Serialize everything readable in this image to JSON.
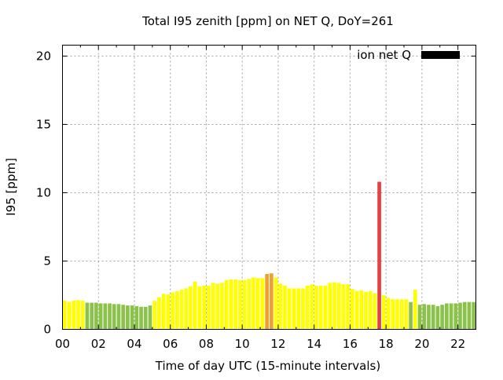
{
  "chart_data": {
    "type": "bar",
    "title": "Total I95 zenith [ppm] on NET Q, DoY=261",
    "xlabel": "Time of day UTC (15-minute intervals)",
    "ylabel": "I95 [ppm]",
    "xlim": [
      0,
      23
    ],
    "ylim": [
      0,
      20.8
    ],
    "x_ticks": [
      "00",
      "02",
      "04",
      "06",
      "08",
      "10",
      "12",
      "14",
      "16",
      "18",
      "20",
      "22"
    ],
    "y_ticks": [
      "0",
      "5",
      "10",
      "15",
      "20"
    ],
    "grid": true,
    "legend": {
      "label": "ion net Q",
      "color": "#000000",
      "position": "top-right"
    },
    "x": [
      0.125,
      0.375,
      0.625,
      0.875,
      1.125,
      1.375,
      1.625,
      1.875,
      2.125,
      2.375,
      2.625,
      2.875,
      3.125,
      3.375,
      3.625,
      3.875,
      4.125,
      4.375,
      4.625,
      4.875,
      5.125,
      5.375,
      5.625,
      5.875,
      6.125,
      6.375,
      6.625,
      6.875,
      7.125,
      7.375,
      7.625,
      7.875,
      8.125,
      8.375,
      8.625,
      8.875,
      9.125,
      9.375,
      9.625,
      9.875,
      10.125,
      10.375,
      10.625,
      10.875,
      11.125,
      11.375,
      11.625,
      11.875,
      12.125,
      12.375,
      12.625,
      12.875,
      13.125,
      13.375,
      13.625,
      13.875,
      14.125,
      14.375,
      14.625,
      14.875,
      15.125,
      15.375,
      15.625,
      15.875,
      16.125,
      16.375,
      16.625,
      16.875,
      17.125,
      17.375,
      17.625,
      17.875,
      18.125,
      18.375,
      18.625,
      18.875,
      19.125,
      19.375,
      19.625,
      19.875,
      20.125,
      20.375,
      20.625,
      20.875,
      21.125,
      21.375,
      21.625,
      21.875,
      22.125,
      22.375,
      22.625,
      22.875
    ],
    "values": [
      2.1,
      2.0,
      2.1,
      2.15,
      2.1,
      1.95,
      1.95,
      1.95,
      1.9,
      1.9,
      1.9,
      1.85,
      1.85,
      1.8,
      1.75,
      1.75,
      1.7,
      1.65,
      1.65,
      1.75,
      2.1,
      2.35,
      2.6,
      2.55,
      2.7,
      2.8,
      2.9,
      3.0,
      3.15,
      3.5,
      3.15,
      3.2,
      3.2,
      3.4,
      3.35,
      3.4,
      3.6,
      3.65,
      3.65,
      3.6,
      3.6,
      3.7,
      3.8,
      3.75,
      3.75,
      4.05,
      4.1,
      3.8,
      3.35,
      3.2,
      3.0,
      3.0,
      3.0,
      3.0,
      3.2,
      3.3,
      3.2,
      3.2,
      3.2,
      3.4,
      3.45,
      3.4,
      3.3,
      3.3,
      2.95,
      2.8,
      2.85,
      2.75,
      2.8,
      2.65,
      10.8,
      2.5,
      2.3,
      2.2,
      2.2,
      2.2,
      2.2,
      2.0,
      2.9,
      1.8,
      1.85,
      1.8,
      1.8,
      1.7,
      1.8,
      1.9,
      1.9,
      1.9,
      1.95,
      2.0,
      2.0,
      2.0
    ],
    "bar_colors": [
      "#ffff00",
      "#ffff00",
      "#ffff00",
      "#ffff00",
      "#ffff00",
      "#8bc34a",
      "#8bc34a",
      "#8bc34a",
      "#8bc34a",
      "#8bc34a",
      "#8bc34a",
      "#8bc34a",
      "#8bc34a",
      "#8bc34a",
      "#8bc34a",
      "#8bc34a",
      "#8bc34a",
      "#8bc34a",
      "#8bc34a",
      "#8bc34a",
      "#ffff00",
      "#ffff00",
      "#ffff00",
      "#ffff00",
      "#ffff00",
      "#ffff00",
      "#ffff00",
      "#ffff00",
      "#ffff00",
      "#ffff00",
      "#ffff00",
      "#ffff00",
      "#ffff00",
      "#ffff00",
      "#ffff00",
      "#ffff00",
      "#ffff00",
      "#ffff00",
      "#ffff00",
      "#ffff00",
      "#ffff00",
      "#ffff00",
      "#ffff00",
      "#ffff00",
      "#ffff00",
      "#f0a030",
      "#f0a030",
      "#ffff00",
      "#ffff00",
      "#ffff00",
      "#ffff00",
      "#ffff00",
      "#ffff00",
      "#ffff00",
      "#ffff00",
      "#ffff00",
      "#ffff00",
      "#ffff00",
      "#ffff00",
      "#ffff00",
      "#ffff00",
      "#ffff00",
      "#ffff00",
      "#ffff00",
      "#ffff00",
      "#ffff00",
      "#ffff00",
      "#ffff00",
      "#ffff00",
      "#ffff00",
      "#e84040",
      "#ffff00",
      "#ffff00",
      "#ffff00",
      "#ffff00",
      "#ffff00",
      "#ffff00",
      "#8bc34a",
      "#ffff00",
      "#8bc34a",
      "#8bc34a",
      "#8bc34a",
      "#8bc34a",
      "#8bc34a",
      "#8bc34a",
      "#8bc34a",
      "#8bc34a",
      "#8bc34a",
      "#8bc34a",
      "#8bc34a",
      "#8bc34a",
      "#8bc34a"
    ]
  }
}
